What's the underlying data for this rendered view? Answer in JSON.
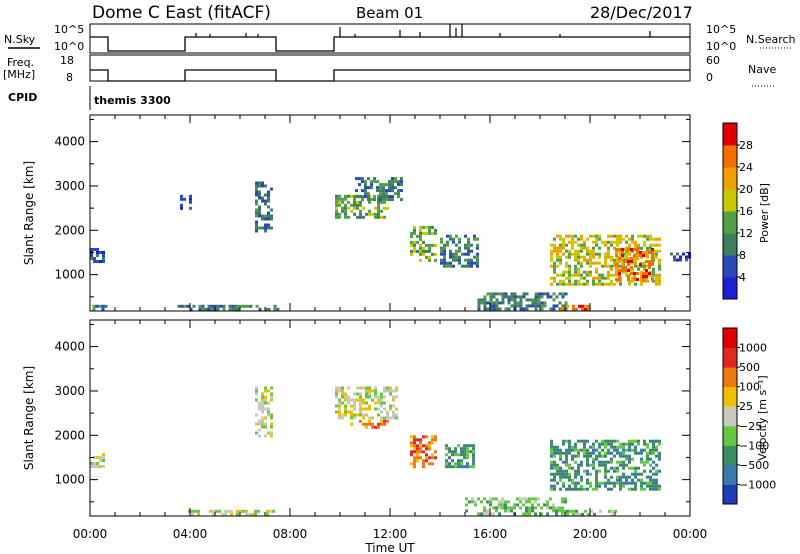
{
  "header": {
    "station": "Dome C East (fitACF)",
    "beam": "Beam 01",
    "date": "28/Dec/2017"
  },
  "top_panels": {
    "nsky_label": "N.Sky",
    "nsky_ticks": [
      "10^5",
      "10^0"
    ],
    "nsearch_label": "N.Search",
    "nsearch_ticks": [
      "10^5",
      "10^0"
    ],
    "freq_label": "Freq.",
    "freq_unit": "[MHz]",
    "freq_ticks": [
      "18",
      "8"
    ],
    "nave_label": "Nave",
    "nave_ticks": [
      "60",
      "0"
    ],
    "cpid_label": "CPID",
    "cpid_value": "themis 3300"
  },
  "chart_data": [
    {
      "type": "heatmap",
      "name": "power",
      "ylabel": "Slant Range [km]",
      "yticks": [
        "1000",
        "2000",
        "3000",
        "4000"
      ],
      "xlim": [
        0,
        24
      ],
      "ylim": [
        180,
        4600
      ],
      "colorbar": {
        "label": "Power [dB]",
        "ticks": [
          "4",
          "8",
          "12",
          "16",
          "20",
          "24",
          "28"
        ],
        "colors": [
          "#1e1ed8",
          "#2a4ab8",
          "#3f7f5f",
          "#4fa048",
          "#c8c800",
          "#f0a000",
          "#f07000",
          "#e00000"
        ]
      },
      "regions": [
        {
          "t": [
            0.0,
            0.6
          ],
          "r": [
            1300,
            1600
          ],
          "level": 1
        },
        {
          "t": [
            0.1,
            0.8
          ],
          "r": [
            200,
            320
          ],
          "level": 2
        },
        {
          "t": [
            3.6,
            4.0
          ],
          "r": [
            2500,
            2800
          ],
          "level": 1
        },
        {
          "t": [
            3.5,
            7.5
          ],
          "r": [
            200,
            320
          ],
          "level": 2
        },
        {
          "t": [
            6.6,
            7.3
          ],
          "r": [
            2000,
            3100
          ],
          "level": 2
        },
        {
          "t": [
            9.8,
            11.9
          ],
          "r": [
            2300,
            2800
          ],
          "level": 3
        },
        {
          "t": [
            10.6,
            12.4
          ],
          "r": [
            2700,
            3200
          ],
          "level": 2
        },
        {
          "t": [
            12.8,
            13.8
          ],
          "r": [
            1300,
            2100
          ],
          "level": 3
        },
        {
          "t": [
            14.0,
            15.5
          ],
          "r": [
            1200,
            1900
          ],
          "level": 2
        },
        {
          "t": [
            15.5,
            19.0
          ],
          "r": [
            200,
            600
          ],
          "level": 2
        },
        {
          "t": [
            18.8,
            20.0
          ],
          "r": [
            200,
            320
          ],
          "level": 6
        },
        {
          "t": [
            18.4,
            22.8
          ],
          "r": [
            800,
            1900
          ],
          "level": 4
        },
        {
          "t": [
            21.0,
            22.5
          ],
          "r": [
            900,
            1600
          ],
          "level": 6
        },
        {
          "t": [
            23.2,
            24.0
          ],
          "r": [
            1300,
            1500
          ],
          "level": 1
        }
      ]
    },
    {
      "type": "heatmap",
      "name": "velocity",
      "ylabel": "Slant Range [km]",
      "xlabel": "Time UT",
      "xticks": [
        "00:00",
        "04:00",
        "08:00",
        "12:00",
        "16:00",
        "20:00",
        "00:00"
      ],
      "yticks": [
        "1000",
        "2000",
        "3000",
        "4000"
      ],
      "xlim": [
        0,
        24
      ],
      "ylim": [
        180,
        4600
      ],
      "colorbar": {
        "label": "Velocity [m s⁻¹]",
        "ticks": [
          "1000",
          "500",
          "100",
          "25",
          "−25",
          "−100",
          "−500",
          "−1000"
        ],
        "colors": [
          "#1e3cb4",
          "#3c78aa",
          "#3c8c64",
          "#64c846",
          "#c8c8c0",
          "#f0c000",
          "#f07814",
          "#e0281e",
          "#e00000"
        ]
      },
      "regions": [
        {
          "t": [
            0.0,
            0.6
          ],
          "r": [
            1300,
            1600
          ],
          "level": 4
        },
        {
          "t": [
            3.8,
            7.4
          ],
          "r": [
            200,
            320
          ],
          "level": 4
        },
        {
          "t": [
            6.6,
            7.3
          ],
          "r": [
            2000,
            3100
          ],
          "level": 4
        },
        {
          "t": [
            9.8,
            12.3
          ],
          "r": [
            2400,
            3100
          ],
          "level": 4
        },
        {
          "t": [
            10.4,
            11.9
          ],
          "r": [
            2200,
            2350
          ],
          "level": 6
        },
        {
          "t": [
            12.8,
            13.8
          ],
          "r": [
            1300,
            2000
          ],
          "level": 6
        },
        {
          "t": [
            14.2,
            15.3
          ],
          "r": [
            1300,
            1800
          ],
          "level": 2
        },
        {
          "t": [
            15.0,
            19.0
          ],
          "r": [
            200,
            600
          ],
          "level": 3
        },
        {
          "t": [
            18.8,
            21.0
          ],
          "r": [
            200,
            320
          ],
          "level": 3
        },
        {
          "t": [
            18.4,
            22.8
          ],
          "r": [
            800,
            1900
          ],
          "level": 2
        }
      ]
    }
  ]
}
